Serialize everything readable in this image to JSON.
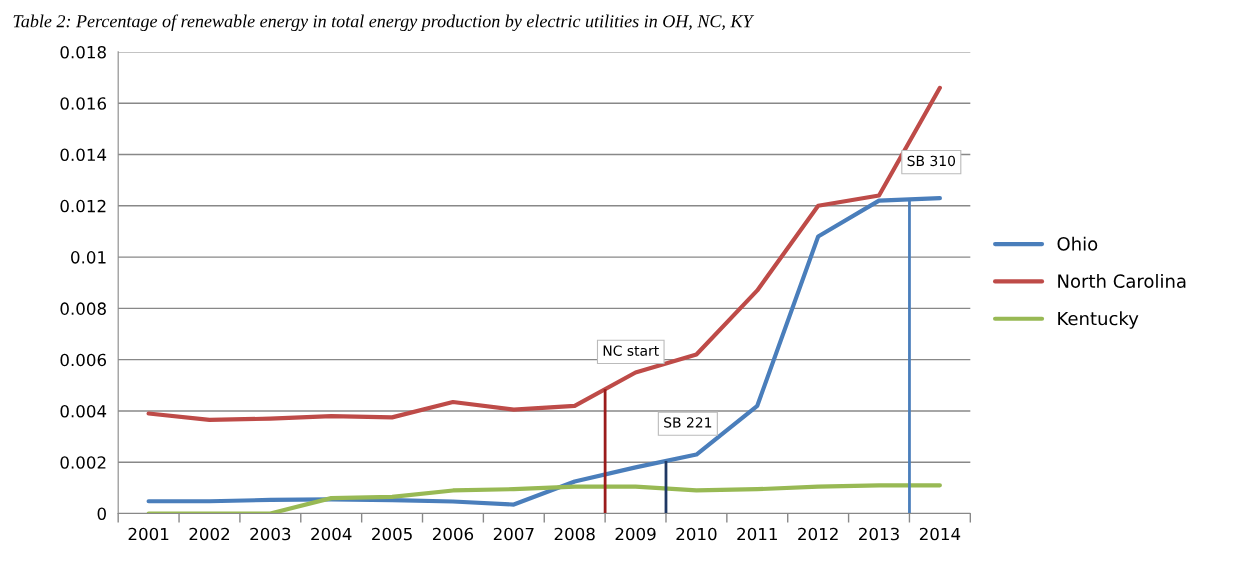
{
  "chart_data": {
    "type": "line",
    "title": "Table 2: Percentage of renewable energy in total energy production by electric utilities in OH, NC, KY",
    "x": [
      2001,
      2002,
      2003,
      2004,
      2005,
      2006,
      2007,
      2008,
      2009,
      2010,
      2011,
      2012,
      2013,
      2014
    ],
    "xlim": [
      2000.5,
      2014.5
    ],
    "xticks": [
      2001,
      2002,
      2003,
      2004,
      2005,
      2006,
      2007,
      2008,
      2009,
      2010,
      2011,
      2012,
      2013,
      2014
    ],
    "ylim": [
      0,
      0.018
    ],
    "yticks": [
      0,
      0.002,
      0.004,
      0.006,
      0.008,
      0.01,
      0.012,
      0.014,
      0.016,
      0.018
    ],
    "series": [
      {
        "name": "Ohio",
        "color": "#4a7ebb",
        "values": [
          0.00048,
          0.00048,
          0.00053,
          0.00055,
          0.00052,
          0.00047,
          0.00035,
          0.00125,
          0.0018,
          0.0023,
          0.0042,
          0.0108,
          0.0122,
          0.0123
        ]
      },
      {
        "name": "North Carolina",
        "color": "#be4b48",
        "values": [
          0.0039,
          0.00365,
          0.0037,
          0.0038,
          0.00375,
          0.00435,
          0.00405,
          0.0042,
          0.0055,
          0.0062,
          0.0087,
          0.012,
          0.0124,
          0.0166
        ]
      },
      {
        "name": "Kentucky",
        "color": "#98b954",
        "values": [
          0,
          0,
          0,
          0.0006,
          0.00065,
          0.0009,
          0.00095,
          0.00105,
          0.00105,
          0.0009,
          0.00095,
          0.00105,
          0.0011,
          0.0011
        ]
      }
    ],
    "ref_lines": [
      {
        "axis": "x",
        "value": 2008.5,
        "label": "NC start",
        "color": "#9b1c1c"
      },
      {
        "axis": "x",
        "value": 2009.5,
        "label": "SB 221",
        "color": "#1f3864"
      },
      {
        "axis": "x",
        "value": 2013.5,
        "label": "SB 310",
        "color": "#4a7ebb"
      }
    ],
    "grid": "y",
    "legend": "right",
    "marker": "none",
    "line_style": "solid"
  }
}
